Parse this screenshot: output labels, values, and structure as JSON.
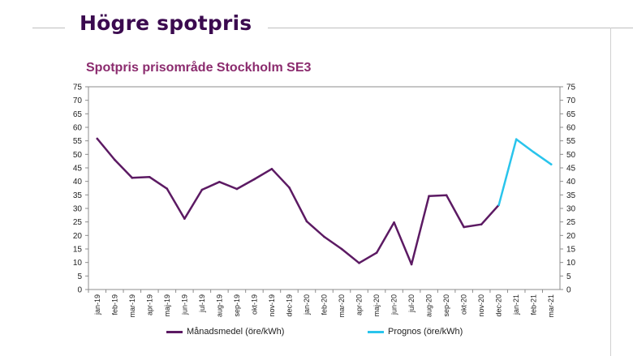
{
  "slide": {
    "title": "Högre spotpris"
  },
  "chart_data": {
    "type": "line",
    "title": "Spotpris prisområde Stockholm SE3",
    "xlabel": "",
    "ylabel": "",
    "ylim": [
      0,
      75
    ],
    "yticks": [
      0,
      5,
      10,
      15,
      20,
      25,
      30,
      35,
      40,
      45,
      50,
      55,
      60,
      65,
      70,
      75
    ],
    "secondary_y_axis": true,
    "grid": false,
    "legend_position": "bottom",
    "categories": [
      "jan-19",
      "feb-19",
      "mar-19",
      "apr-19",
      "maj-19",
      "jun-19",
      "jul-19",
      "aug-19",
      "sep-19",
      "okt-19",
      "nov-19",
      "dec-19",
      "jan-20",
      "feb-20",
      "mar-20",
      "apr-20",
      "maj-20",
      "jun-20",
      "jul-20",
      "aug-20",
      "sep-20",
      "okt-20",
      "nov-20",
      "dec-20",
      "jan-21",
      "feb-21",
      "mar-21"
    ],
    "series": [
      {
        "name": "Månadsmedel (öre/kWh)",
        "color": "#5c1a63",
        "values": [
          55.8,
          48,
          41.3,
          41.6,
          37.3,
          26.2,
          36.9,
          39.8,
          37.2,
          40.8,
          44.6,
          37.7,
          25.2,
          19.5,
          15,
          9.8,
          13.6,
          24.8,
          9.3,
          34.6,
          34.9,
          23.1,
          24.1,
          31.3,
          null,
          null,
          null
        ]
      },
      {
        "name": "Prognos (öre/kWh)",
        "color": "#29c4ec",
        "values": [
          null,
          null,
          null,
          null,
          null,
          null,
          null,
          null,
          null,
          null,
          null,
          null,
          null,
          null,
          null,
          null,
          null,
          null,
          null,
          null,
          null,
          null,
          null,
          31.3,
          55.6,
          50.8,
          46.3
        ]
      }
    ]
  }
}
